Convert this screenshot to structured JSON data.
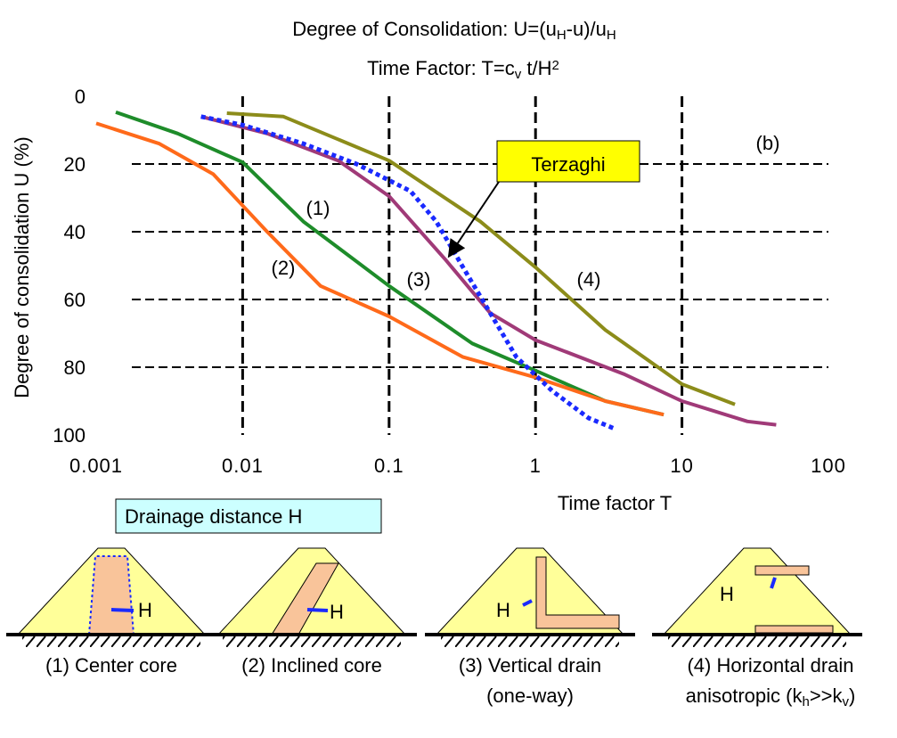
{
  "chart_data": {
    "type": "line",
    "title": [
      "Degree of Consolidation: U=(u",
      "H",
      "-u)/u",
      "H"
    ],
    "subtitle": [
      "Time Factor: T=c",
      "v",
      "   t/H",
      "2"
    ],
    "x_label": "Time factor   T",
    "y_label": "Degree of consolidation   U (%)",
    "panel_label": "(b)",
    "xscale": "log",
    "xlim": [
      0.001,
      100
    ],
    "xticks": [
      0.001,
      0.01,
      0.1,
      1,
      10,
      100
    ],
    "ylim": [
      0,
      100
    ],
    "yticks": [
      0,
      20,
      40,
      60,
      80,
      100
    ],
    "y_reversed": true,
    "grid": true,
    "series": [
      {
        "name": "(1)",
        "color": "#1e8c2a",
        "x": [
          0.00136,
          0.0036,
          0.01,
          0.026,
          0.1,
          0.37,
          1,
          3,
          7.5
        ],
        "values": [
          4.7,
          11,
          19.5,
          37,
          56,
          73,
          81,
          90,
          94
        ]
      },
      {
        "name": "(2)",
        "color": "#ff6a1a",
        "x": [
          0.001,
          0.0027,
          0.0063,
          0.0147,
          0.034,
          0.1,
          0.32,
          1,
          3,
          7.5
        ],
        "values": [
          8,
          14,
          23,
          40,
          56,
          65,
          77,
          83,
          90,
          94
        ]
      },
      {
        "name": "(3)",
        "color": "#a03a78",
        "x": [
          0.0052,
          0.0147,
          0.045,
          0.1,
          0.24,
          0.49,
          1,
          4,
          10,
          28,
          44
        ],
        "values": [
          6,
          11,
          19,
          29.5,
          48,
          64,
          72,
          82,
          90,
          96,
          97
        ]
      },
      {
        "name": "(4)",
        "color": "#8c8c1a",
        "x": [
          0.0078,
          0.019,
          0.1,
          0.42,
          1,
          3,
          10,
          23
        ],
        "values": [
          5,
          6,
          19,
          37,
          50.5,
          69,
          85,
          91
        ]
      },
      {
        "name": "Terzaghi",
        "color": "#1a2aff",
        "dashed": true,
        "x": [
          0.0052,
          0.01,
          0.026,
          0.06,
          0.14,
          0.21,
          0.32,
          0.49,
          0.74,
          1.3,
          2.3,
          3.4
        ],
        "values": [
          6,
          8.5,
          14,
          20,
          28,
          37,
          50.5,
          64,
          77,
          87,
          95,
          98
        ]
      }
    ]
  },
  "diagrams": {
    "note": "Drainage distance H",
    "items": [
      {
        "label": "H",
        "caption": [
          [
            "(1) Center core"
          ]
        ]
      },
      {
        "label": "H",
        "caption": [
          [
            "(2) Inclined core"
          ]
        ]
      },
      {
        "label": "H",
        "caption": [
          [
            "(3) Vertical drain"
          ],
          [
            "(one-way)"
          ]
        ]
      },
      {
        "label": "H",
        "caption": [
          [
            "(4) Horizontal drain"
          ],
          [
            "anisotropic (k",
            "h",
            ">>k",
            "v",
            ")"
          ]
        ]
      }
    ]
  }
}
